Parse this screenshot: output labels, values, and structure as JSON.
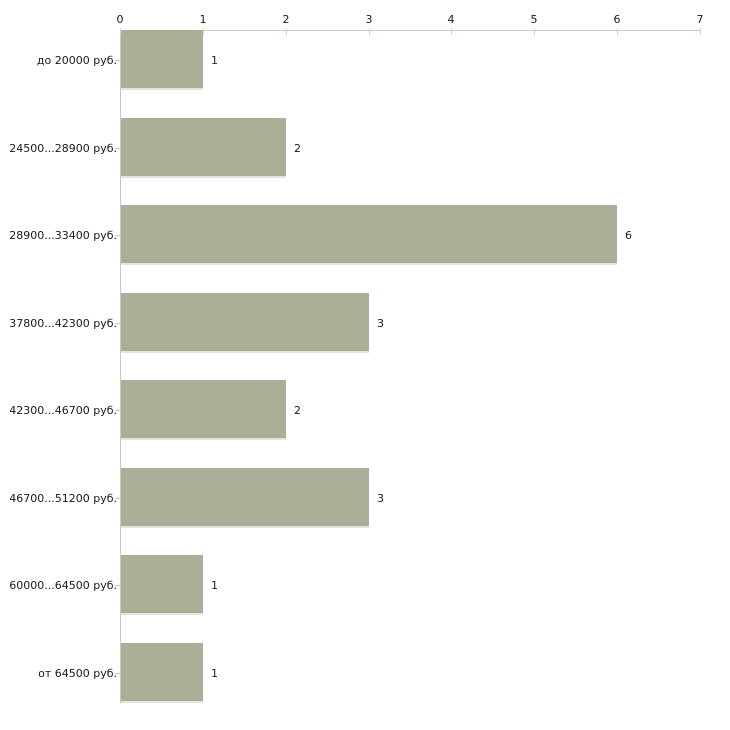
{
  "chart_data": {
    "type": "bar",
    "orientation": "horizontal",
    "title": "",
    "xlabel": "",
    "ylabel": "",
    "categories": [
      "до 20000 руб.",
      "24500...28900 руб.",
      "28900...33400 руб.",
      "37800...42300 руб.",
      "42300...46700 руб.",
      "46700...51200 руб.",
      "60000...64500 руб.",
      "от 64500 руб."
    ],
    "values": [
      1,
      2,
      6,
      3,
      2,
      3,
      1,
      1
    ],
    "value_labels": [
      "1",
      "2",
      "6",
      "3",
      "2",
      "3",
      "1",
      "1"
    ],
    "xlim": [
      0,
      7
    ],
    "x_ticks": [
      "0",
      "1",
      "2",
      "3",
      "4",
      "5",
      "6",
      "7"
    ],
    "grid": false,
    "legend": false,
    "colors": {
      "bar": "#aab097",
      "bar_bottom_highlight": "#e3e5dc",
      "axis_line": "#c8c8c8",
      "tick_mark": "#d5d8ba",
      "text": "#1a1a1a",
      "background": "#ffffff"
    }
  }
}
